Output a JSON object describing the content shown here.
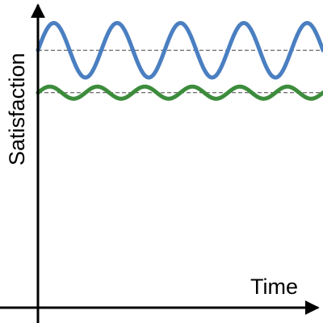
{
  "chart_data": {
    "type": "line",
    "title": "",
    "xlabel": "Time",
    "ylabel": "Satisfaction",
    "ticks_shown": false,
    "legend": "none",
    "grid": false,
    "ylim": [
      0,
      1
    ],
    "series": [
      {
        "color": "#4a7fc1",
        "style": "solid",
        "kind": "sinusoid",
        "baseline": 0.85,
        "amplitude": 0.09,
        "cycles": 4.5,
        "x_start": 0,
        "x_end": 1,
        "phase": "starts at baseline, rising"
      },
      {
        "color": "#3c8c3c",
        "style": "solid",
        "kind": "sinusoid",
        "baseline": 0.71,
        "amplitude": 0.02,
        "cycles": 6,
        "x_start": 0,
        "x_end": 1,
        "phase": "starts at baseline, rising"
      }
    ],
    "reference_lines": [
      {
        "y": 0.85,
        "style": "dashed",
        "color": "#444444"
      },
      {
        "y": 0.71,
        "style": "dashed",
        "color": "#444444"
      }
    ],
    "axis_color": "#000000"
  }
}
